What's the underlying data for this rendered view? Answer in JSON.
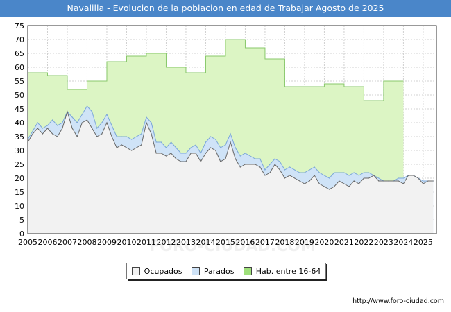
{
  "title": "Navalilla - Evolucion de la poblacion en edad de Trabajar Agosto de 2025",
  "source": "http://www.foro-ciudad.com",
  "watermark": "FORO-CIUDAD.COM",
  "colors": {
    "title_bg": "#4a86c9",
    "ocupados_fill": "#f2f2f2",
    "ocupados_line": "#666666",
    "parados_fill": "#cfe3f7",
    "parados_line": "#7aa6d8",
    "hab_fill": "#dcf5c4",
    "hab_line": "#88c86a"
  },
  "chart_data": {
    "type": "area",
    "title": "Navalilla - Evolucion de la poblacion en edad de Trabajar Agosto de 2025",
    "xlabel": "",
    "ylabel": "",
    "ylim": [
      0,
      75
    ],
    "xlim": [
      2005,
      2025.67
    ],
    "yticks": [
      0,
      5,
      10,
      15,
      20,
      25,
      30,
      35,
      40,
      45,
      50,
      55,
      60,
      65,
      70,
      75
    ],
    "xticks": [
      2005,
      2006,
      2007,
      2008,
      2009,
      2010,
      2011,
      2012,
      2013,
      2014,
      2015,
      2016,
      2017,
      2018,
      2019,
      2020,
      2021,
      2022,
      2023,
      2024,
      2025
    ],
    "grid": true,
    "legend": [
      "Ocupados",
      "Parados",
      "Hab. entre 16-64"
    ],
    "legend_position": "bottom",
    "hab_16_64": {
      "years": [
        2005,
        2006,
        2007,
        2008,
        2009,
        2010,
        2011,
        2012,
        2013,
        2014,
        2015,
        2016,
        2017,
        2018,
        2019,
        2020,
        2021,
        2022,
        2023
      ],
      "values": [
        58,
        57,
        52,
        55,
        62,
        64,
        65,
        60,
        58,
        64,
        70,
        67,
        63,
        53,
        53,
        54,
        53,
        48,
        55
      ]
    },
    "series": [
      {
        "name": "Parados",
        "x": [
          2005.0,
          2005.25,
          2005.5,
          2005.75,
          2006.0,
          2006.25,
          2006.5,
          2006.75,
          2007.0,
          2007.25,
          2007.5,
          2007.75,
          2008.0,
          2008.25,
          2008.5,
          2008.75,
          2009.0,
          2009.25,
          2009.5,
          2009.75,
          2010.0,
          2010.25,
          2010.5,
          2010.75,
          2011.0,
          2011.25,
          2011.5,
          2011.75,
          2012.0,
          2012.25,
          2012.5,
          2012.75,
          2013.0,
          2013.25,
          2013.5,
          2013.75,
          2014.0,
          2014.25,
          2014.5,
          2014.75,
          2015.0,
          2015.25,
          2015.5,
          2015.75,
          2016.0,
          2016.25,
          2016.5,
          2016.75,
          2017.0,
          2017.25,
          2017.5,
          2017.75,
          2018.0,
          2018.25,
          2018.5,
          2018.75,
          2019.0,
          2019.25,
          2019.5,
          2019.75,
          2020.0,
          2020.25,
          2020.5,
          2020.75,
          2021.0,
          2021.25,
          2021.5,
          2021.75,
          2022.0,
          2022.25,
          2022.5,
          2022.75,
          2023.0,
          2023.25,
          2023.5,
          2023.75,
          2024.0,
          2024.25,
          2024.5,
          2024.75,
          2025.0,
          2025.25,
          2025.5
        ],
        "values": [
          34,
          37,
          40,
          38,
          39,
          41,
          39,
          40,
          44,
          42,
          40,
          43,
          46,
          44,
          38,
          40,
          43,
          39,
          35,
          35,
          35,
          34,
          35,
          36,
          42,
          40,
          33,
          33,
          31,
          33,
          31,
          29,
          29,
          31,
          32,
          29,
          33,
          35,
          34,
          31,
          32,
          36,
          31,
          28,
          29,
          28,
          27,
          27,
          23,
          25,
          27,
          26,
          23,
          24,
          23,
          22,
          22,
          23,
          24,
          22,
          21,
          20,
          22,
          22,
          22,
          21,
          22,
          21,
          22,
          22,
          21,
          20,
          19,
          19,
          19,
          20,
          20,
          21,
          21,
          20,
          19,
          19,
          19
        ]
      },
      {
        "name": "Ocupados",
        "x": [
          2005.0,
          2005.25,
          2005.5,
          2005.75,
          2006.0,
          2006.25,
          2006.5,
          2006.75,
          2007.0,
          2007.25,
          2007.5,
          2007.75,
          2008.0,
          2008.25,
          2008.5,
          2008.75,
          2009.0,
          2009.25,
          2009.5,
          2009.75,
          2010.0,
          2010.25,
          2010.5,
          2010.75,
          2011.0,
          2011.25,
          2011.5,
          2011.75,
          2012.0,
          2012.25,
          2012.5,
          2012.75,
          2013.0,
          2013.25,
          2013.5,
          2013.75,
          2014.0,
          2014.25,
          2014.5,
          2014.75,
          2015.0,
          2015.25,
          2015.5,
          2015.75,
          2016.0,
          2016.25,
          2016.5,
          2016.75,
          2017.0,
          2017.25,
          2017.5,
          2017.75,
          2018.0,
          2018.25,
          2018.5,
          2018.75,
          2019.0,
          2019.25,
          2019.5,
          2019.75,
          2020.0,
          2020.25,
          2020.5,
          2020.75,
          2021.0,
          2021.25,
          2021.5,
          2021.75,
          2022.0,
          2022.25,
          2022.5,
          2022.75,
          2023.0,
          2023.25,
          2023.5,
          2023.75,
          2024.0,
          2024.25,
          2024.5,
          2024.75,
          2025.0,
          2025.25,
          2025.5
        ],
        "values": [
          33,
          36,
          38,
          36,
          38,
          36,
          35,
          38,
          44,
          38,
          35,
          40,
          41,
          38,
          35,
          36,
          40,
          35,
          31,
          32,
          31,
          30,
          31,
          32,
          40,
          36,
          29,
          29,
          28,
          29,
          27,
          26,
          26,
          29,
          29,
          26,
          29,
          31,
          30,
          26,
          27,
          33,
          27,
          24,
          25,
          25,
          25,
          24,
          21,
          22,
          25,
          23,
          20,
          21,
          20,
          19,
          18,
          19,
          21,
          18,
          17,
          16,
          17,
          19,
          18,
          17,
          19,
          18,
          20,
          20,
          21,
          19,
          19,
          19,
          19,
          19,
          18,
          21,
          21,
          20,
          18,
          19,
          19
        ]
      }
    ]
  }
}
